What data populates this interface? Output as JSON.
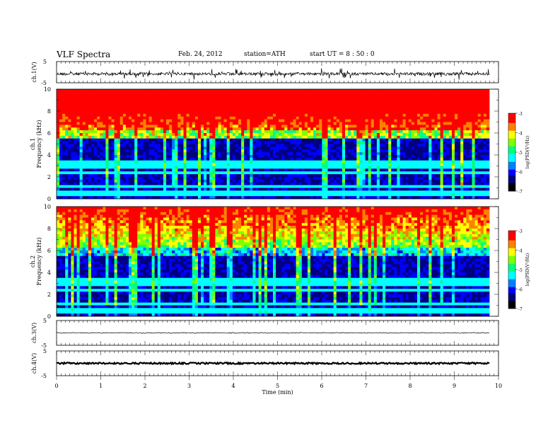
{
  "header": {
    "title": "VLF  Spectra",
    "date": "Feb. 24, 2012",
    "station": "station=ATH",
    "start": "start  UT  =   8 : 50 : 0"
  },
  "colors": {
    "colormap": [
      "#000000",
      "#000080",
      "#0000ff",
      "#0080ff",
      "#00ffff",
      "#00ff80",
      "#80ff00",
      "#ffff00",
      "#ff8000",
      "#ff0000"
    ],
    "trace": "#000000"
  },
  "chart_data": [
    {
      "type": "line",
      "panel": "ch1",
      "ylabel": "ch.1(V)",
      "yticks": [
        "5",
        "-5"
      ],
      "ylim": [
        -5,
        5
      ],
      "x": [
        0,
        9.8
      ],
      "description_level": -0.8
    },
    {
      "type": "heatmap",
      "panel": "spec1",
      "ylabel_line1": "ch.1",
      "ylabel_line2": "Frequency  (kHz)",
      "yticks": [
        "0",
        "2",
        "4",
        "6",
        "8",
        "10"
      ],
      "ylim": [
        0,
        10
      ],
      "xlim": [
        0,
        9.8
      ],
      "colorbar": {
        "label": "log(PSD(V²/Hz)",
        "ticks": [
          "-3",
          "-4",
          "-5",
          "-6",
          "-7"
        ],
        "range": [
          -7,
          -3
        ]
      }
    },
    {
      "type": "heatmap",
      "panel": "spec2",
      "ylabel_line1": "ch.2",
      "ylabel_line2": "Frequency  (kHz)",
      "yticks": [
        "0",
        "2",
        "4",
        "6",
        "8",
        "10"
      ],
      "ylim": [
        0,
        10
      ],
      "xlim": [
        0,
        9.8
      ],
      "colorbar": {
        "label": "log(PSD(V²/Hz)",
        "ticks": [
          "-3",
          "-4",
          "-5",
          "-6",
          "-7"
        ],
        "range": [
          -7,
          -3
        ]
      }
    },
    {
      "type": "line",
      "panel": "ch3",
      "ylabel": "ch.3(V)",
      "yticks": [
        "5",
        "-5"
      ],
      "ylim": [
        -5,
        5
      ],
      "x": [
        0,
        9.8
      ],
      "level": 0
    },
    {
      "type": "line",
      "panel": "ch4",
      "ylabel": "ch.4(V)",
      "yticks": [
        "5",
        "-5"
      ],
      "ylim": [
        -5,
        5
      ],
      "x": [
        0,
        9.8
      ],
      "level": 0
    }
  ],
  "xaxis": {
    "label": "Time  (min)",
    "ticks": [
      "0",
      "1",
      "2",
      "3",
      "4",
      "5",
      "6",
      "7",
      "8",
      "9",
      "10"
    ],
    "xlim": [
      0,
      10
    ]
  }
}
